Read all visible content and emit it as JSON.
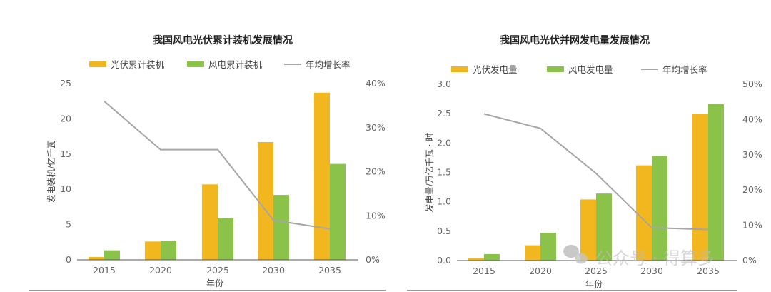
{
  "colors": {
    "solar": "#F2B71E",
    "wind": "#8BC34A",
    "growth": "#A6A6A6",
    "axis": "#555555"
  },
  "watermark": "公众号 · 得算多",
  "chart_data": [
    {
      "type": "bar",
      "title": "我国风电光伏累计装机发展情况",
      "categories": [
        "2015",
        "2020",
        "2025",
        "2030",
        "2035"
      ],
      "xlabel": "年份",
      "ylabel": "发电装机/亿千瓦",
      "ylim": [
        0,
        25
      ],
      "yticks": [
        "0",
        "5",
        "10",
        "15",
        "20",
        "25"
      ],
      "y2lim": [
        0,
        40
      ],
      "y2ticks": [
        "0%",
        "10%",
        "20%",
        "30%",
        "40%"
      ],
      "legend_position": "top",
      "grid": false,
      "series": [
        {
          "name": "光伏累计装机",
          "kind": "bar",
          "axis": "left",
          "color": "#F2B71E",
          "values": [
            0.4,
            2.6,
            10.7,
            16.7,
            23.7
          ]
        },
        {
          "name": "风电累计装机",
          "kind": "bar",
          "axis": "left",
          "color": "#8BC34A",
          "values": [
            1.35,
            2.7,
            5.9,
            9.2,
            13.6
          ]
        },
        {
          "name": "年均增长率",
          "kind": "line",
          "axis": "right",
          "color": "#A6A6A6",
          "values": [
            36,
            25,
            25,
            9,
            7
          ]
        }
      ]
    },
    {
      "type": "bar",
      "title": "我国风电光伏并网发电量发展情况",
      "categories": [
        "2015",
        "2020",
        "2025",
        "2030",
        "2035"
      ],
      "xlabel": "年份",
      "ylabel": "发电量/万亿千瓦 · 时",
      "ylim": [
        0,
        3.0
      ],
      "yticks": [
        "0.0",
        "0.5",
        "1.0",
        "1.5",
        "2.0",
        "2.5",
        "3.0"
      ],
      "y2lim": [
        0,
        50
      ],
      "y2ticks": [
        "0%",
        "10%",
        "20%",
        "30%",
        "40%",
        "50%"
      ],
      "legend_position": "top",
      "grid": false,
      "series": [
        {
          "name": "光伏发电量",
          "kind": "bar",
          "axis": "left",
          "color": "#F2B71E",
          "values": [
            0.04,
            0.26,
            1.04,
            1.62,
            2.49
          ]
        },
        {
          "name": "风电发电量",
          "kind": "bar",
          "axis": "left",
          "color": "#8BC34A",
          "values": [
            0.11,
            0.47,
            1.14,
            1.78,
            2.66
          ]
        },
        {
          "name": "年均增长率",
          "kind": "line",
          "axis": "right",
          "color": "#A6A6A6",
          "values": [
            41.6,
            37.5,
            24.7,
            9.3,
            8.8
          ]
        }
      ]
    }
  ]
}
